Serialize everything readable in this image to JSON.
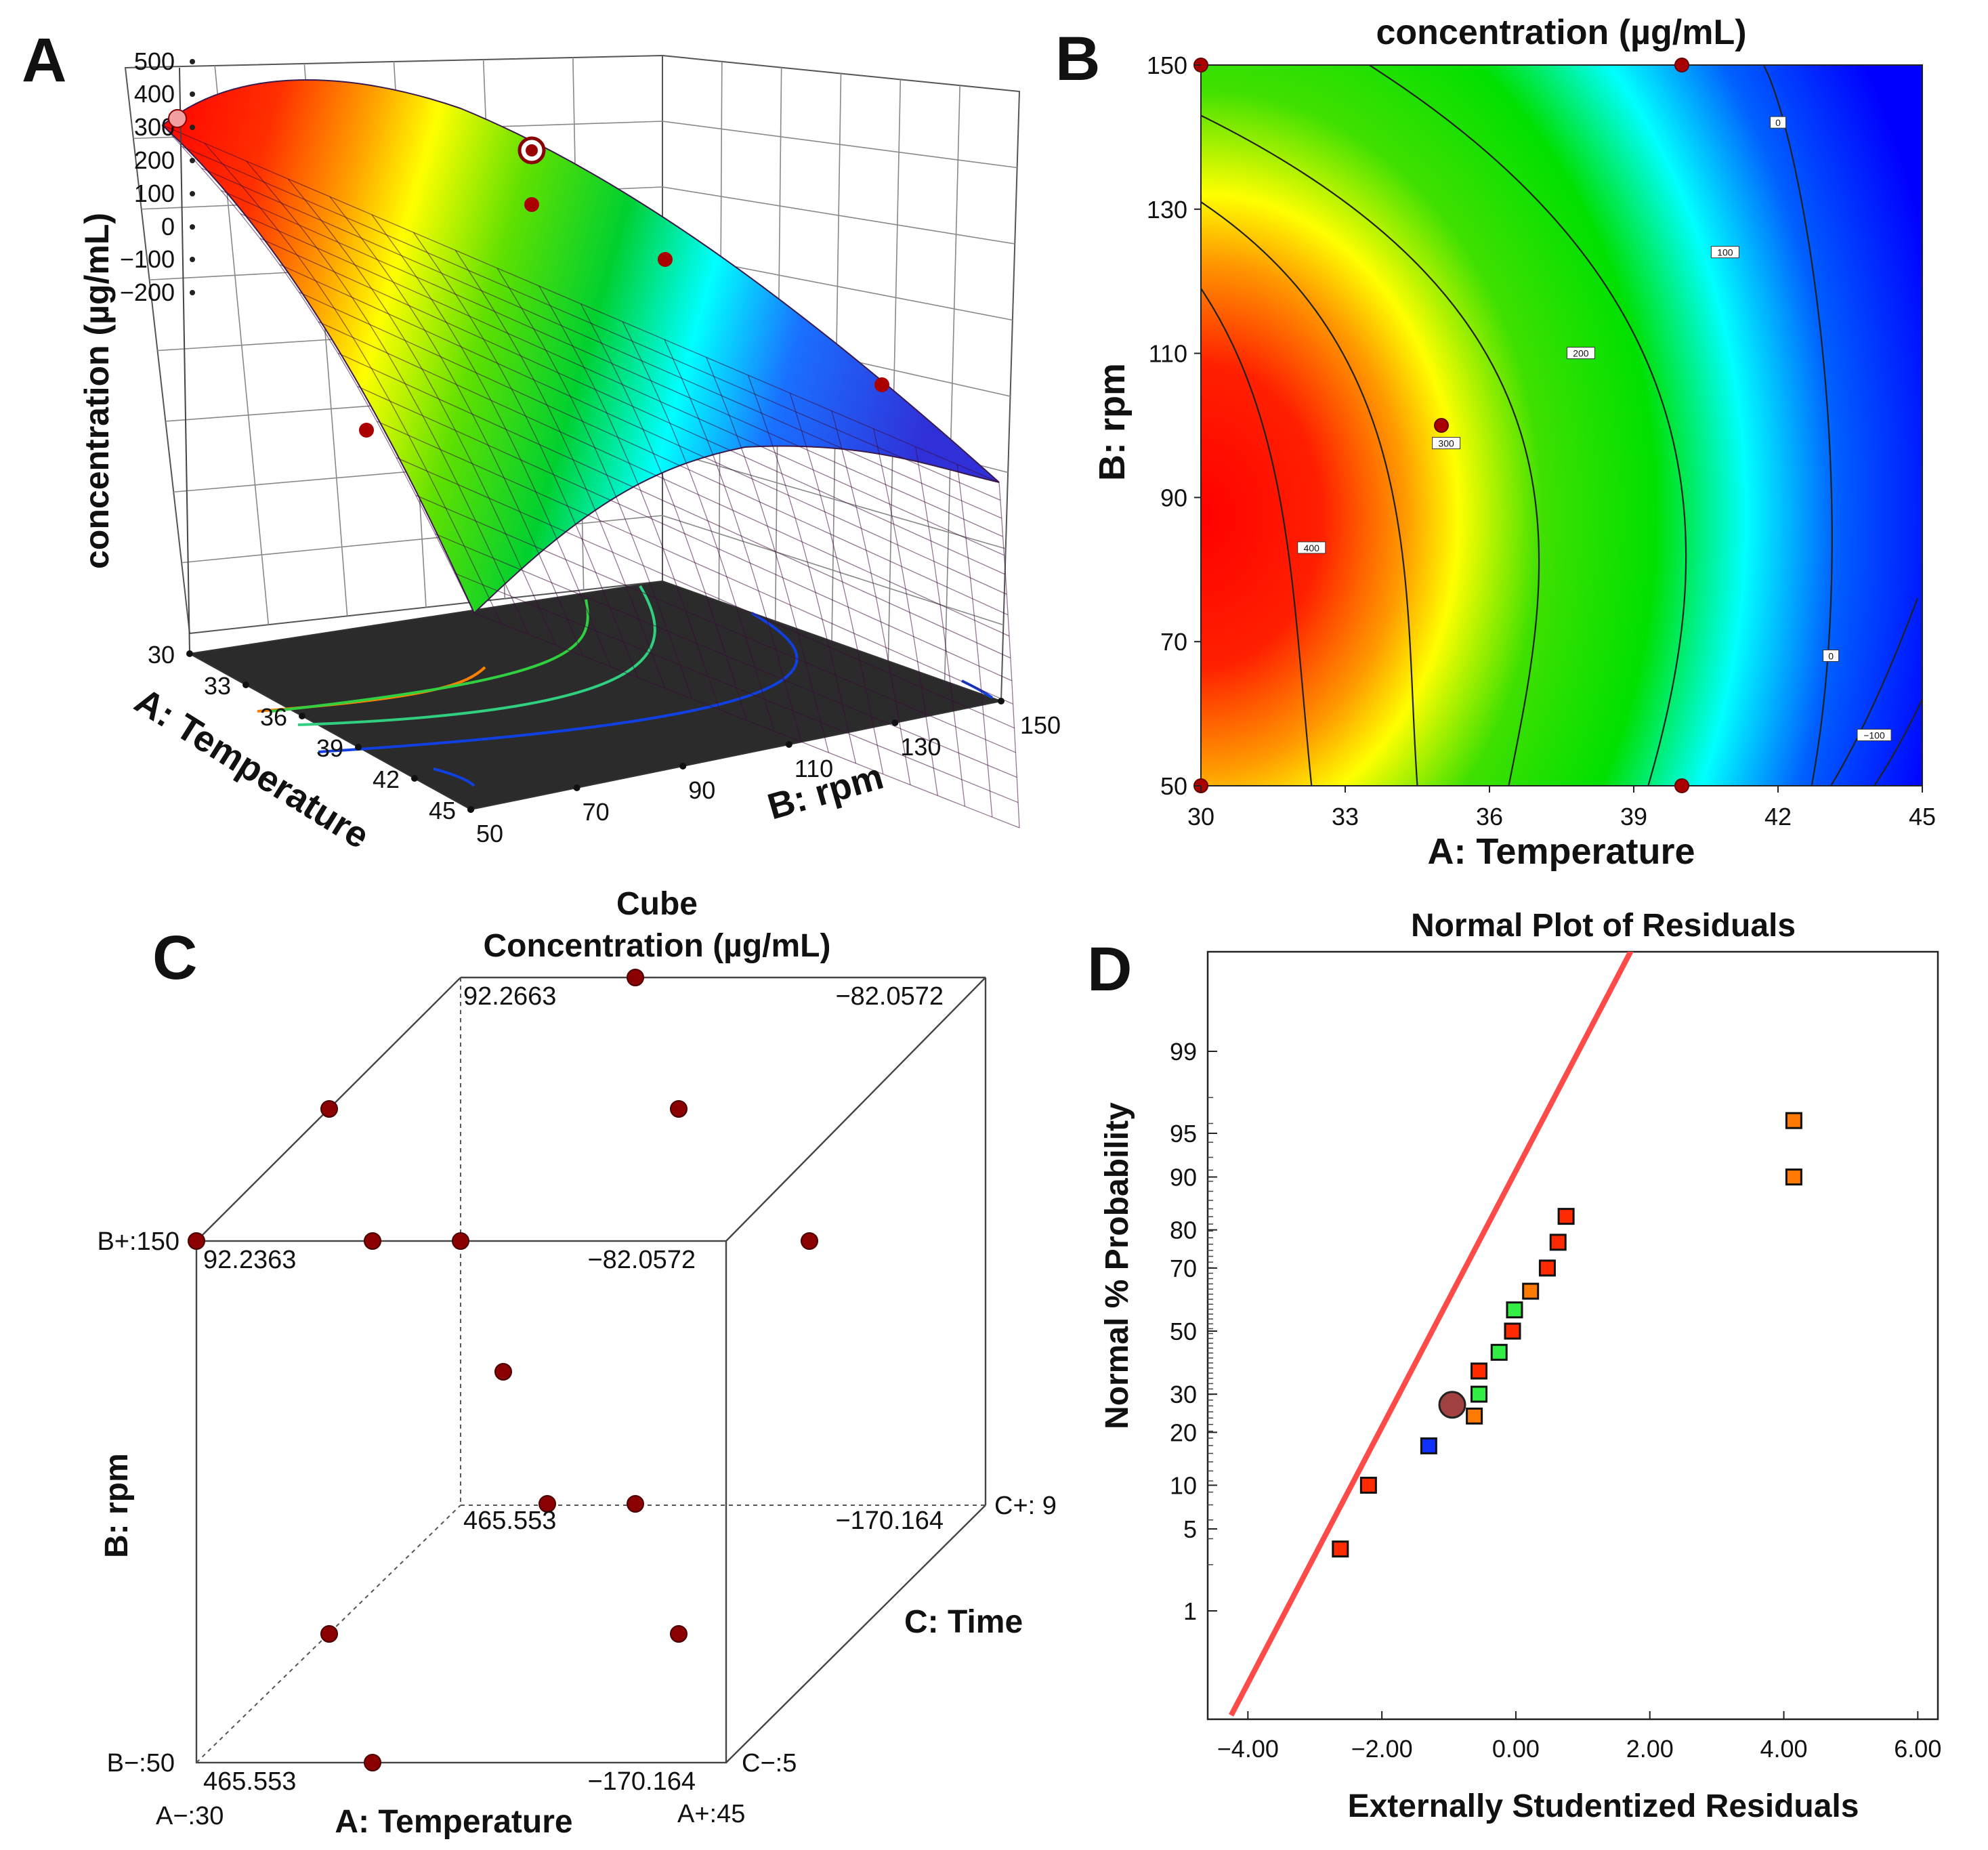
{
  "panels": {
    "A": {
      "letter": "A"
    },
    "B": {
      "letter": "B"
    },
    "C": {
      "letter": "C"
    },
    "D": {
      "letter": "D"
    }
  },
  "chart_data": [
    {
      "id": "A",
      "type": "surface3d",
      "zlabel": "concentration (µg/mL)",
      "xlabel": "A: Temperature",
      "ylabel": "B: rpm",
      "z_ticks": [
        "500",
        "400",
        "300",
        "200",
        "100",
        "0",
        "−100",
        "−200"
      ],
      "x_ticks": [
        "30",
        "33",
        "36",
        "39",
        "42",
        "45"
      ],
      "y_ticks": [
        "50",
        "70",
        "90",
        "110",
        "130",
        "150"
      ],
      "zlim": [
        -200,
        500
      ],
      "xlim": [
        30,
        45
      ],
      "ylim": [
        50,
        150
      ],
      "colors": [
        "#ff0000",
        "#ffa500",
        "#ffff00",
        "#00d000",
        "#00ffff",
        "#0000ff"
      ]
    },
    {
      "id": "B",
      "type": "contour",
      "title": "concentration (µg/mL)",
      "xlabel": "A: Temperature",
      "ylabel": "B: rpm",
      "xlim": [
        30,
        45
      ],
      "ylim": [
        50,
        150
      ],
      "x_ticks": [
        "30",
        "33",
        "36",
        "39",
        "42",
        "45"
      ],
      "y_ticks": [
        "50",
        "70",
        "90",
        "110",
        "130",
        "150"
      ],
      "contour_labels": [
        {
          "text": "400",
          "x": 32.3,
          "y": 83
        },
        {
          "text": "300",
          "x": 35.1,
          "y": 97.5
        },
        {
          "text": "200",
          "x": 37.9,
          "y": 110
        },
        {
          "text": "100",
          "x": 40.9,
          "y": 124
        },
        {
          "text": "0",
          "x": 42.0,
          "y": 142
        },
        {
          "text": "0",
          "x": 43.1,
          "y": 68
        },
        {
          "text": "−100",
          "x": 44.0,
          "y": 57
        }
      ],
      "design_points": [
        {
          "x": 30,
          "y": 150
        },
        {
          "x": 40,
          "y": 150
        },
        {
          "x": 35,
          "y": 100
        },
        {
          "x": 30,
          "y": 50
        },
        {
          "x": 40,
          "y": 50
        }
      ]
    },
    {
      "id": "C",
      "type": "cube",
      "title_line1": "Cube",
      "title_line2": "Concentration (µg/mL)",
      "xlabel": "A: Temperature",
      "ylabel": "B: rpm",
      "zlabel": "C: Time",
      "axis_labels": {
        "a_minus": "A−:30",
        "a_plus": "A+:45",
        "b_minus": "B−:50",
        "b_plus": "B+:150",
        "c_minus": "C−:5",
        "c_plus": "C+: 9"
      },
      "corner_values": {
        "front_top_left": "92.2363",
        "front_top_right": "−82.0572",
        "back_top_left": "92.2663",
        "back_top_right": "−82.0572",
        "front_bottom_left": "465.553",
        "front_bottom_right": "−170.164",
        "back_bottom_left": "465.553",
        "back_bottom_right": "−170.164"
      }
    },
    {
      "id": "D",
      "type": "scatter",
      "title": "Normal Plot of Residuals",
      "xlabel": "Externally Studentized Residuals",
      "ylabel": "Normal % Probability",
      "xlim": [
        -4.6,
        6.3
      ],
      "x_ticks": [
        {
          "label": "−4.00",
          "value": -4
        },
        {
          "label": "−2.00",
          "value": -2
        },
        {
          "label": "0.00",
          "value": 0
        },
        {
          "label": "2.00",
          "value": 2
        },
        {
          "label": "4.00",
          "value": 4
        },
        {
          "label": "6.00",
          "value": 6
        }
      ],
      "y_ticks": [
        "99",
        "95",
        "90",
        "80",
        "70",
        "50",
        "30",
        "20",
        "10",
        "5",
        "1"
      ],
      "points": [
        {
          "x": -2.62,
          "p": 3.5,
          "color": "#ff2a00"
        },
        {
          "x": -2.2,
          "p": 10,
          "color": "#ff2a00"
        },
        {
          "x": -1.3,
          "p": 17,
          "color": "#1030ff"
        },
        {
          "x": -0.62,
          "p": 24,
          "color": "#ff7a00"
        },
        {
          "x": -0.55,
          "p": 30,
          "color": "#33ee44"
        },
        {
          "x": -0.55,
          "p": 37,
          "color": "#ff2a00"
        },
        {
          "x": -0.25,
          "p": 43,
          "color": "#33ee44"
        },
        {
          "x": -0.05,
          "p": 50,
          "color": "#ff2a00"
        },
        {
          "x": -0.02,
          "p": 57,
          "color": "#33ee44"
        },
        {
          "x": 0.22,
          "p": 63,
          "color": "#ff7a00"
        },
        {
          "x": 0.47,
          "p": 70,
          "color": "#ff2a00"
        },
        {
          "x": 0.63,
          "p": 77,
          "color": "#ff2a00"
        },
        {
          "x": 0.75,
          "p": 83,
          "color": "#ff2a00"
        },
        {
          "x": 4.15,
          "p": 90,
          "color": "#ff7a00"
        },
        {
          "x": 4.15,
          "p": 96,
          "color": "#ff7a00"
        }
      ],
      "highlight": {
        "x": -0.95,
        "p": 27
      },
      "fit_line": {
        "x1": -4.25,
        "p1": 0.07,
        "x2": 1.75,
        "p2": 99.93,
        "color": "#ff4a4a"
      }
    }
  ]
}
